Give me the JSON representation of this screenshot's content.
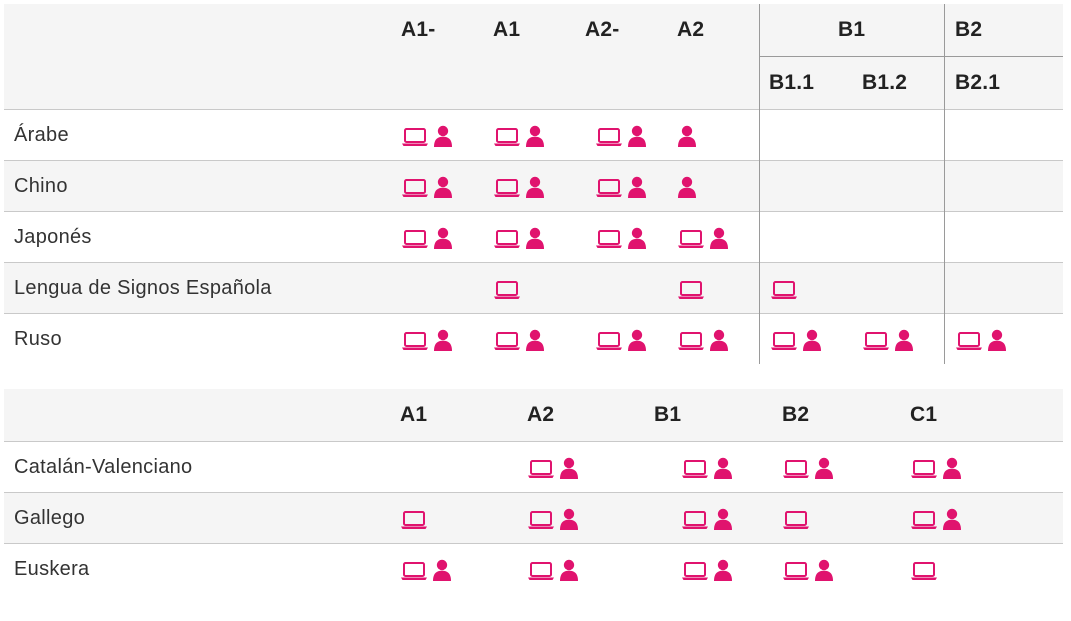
{
  "accent_color": "#e0136e",
  "table1": {
    "levels": [
      "A1-",
      "A1",
      "A2-",
      "A2"
    ],
    "group_b1": "B1",
    "group_b2": "B2",
    "sub_b1": [
      "B1.1",
      "B1.2"
    ],
    "sub_b2": [
      "B2.1"
    ],
    "rows": [
      {
        "language": "Árabe",
        "cells": [
          "laptop+person",
          "laptop+person",
          "laptop+person",
          "person",
          "",
          "",
          ""
        ]
      },
      {
        "language": "Chino",
        "cells": [
          "laptop+person",
          "laptop+person",
          "laptop+person",
          "person",
          "",
          "",
          ""
        ]
      },
      {
        "language": "Japonés",
        "cells": [
          "laptop+person",
          "laptop+person",
          "laptop+person",
          "laptop+person",
          "",
          "",
          ""
        ]
      },
      {
        "language": "Lengua de Signos Española",
        "cells": [
          "",
          "laptop",
          "",
          "laptop",
          "laptop",
          "",
          ""
        ]
      },
      {
        "language": "Ruso",
        "cells": [
          "laptop+person",
          "laptop+person",
          "laptop+person",
          "laptop+person",
          "laptop+person",
          "laptop+person",
          "laptop+person"
        ]
      }
    ]
  },
  "table2": {
    "levels": [
      "A1",
      "A2",
      "B1",
      "B2",
      "C1"
    ],
    "rows": [
      {
        "language": "Catalán-Valenciano",
        "cells": [
          "",
          "laptop+person",
          "laptop+person",
          "laptop+person",
          "laptop+person"
        ]
      },
      {
        "language": "Gallego",
        "cells": [
          "laptop",
          "laptop+person",
          "laptop+person",
          "laptop",
          "laptop+person"
        ]
      },
      {
        "language": "Euskera",
        "cells": [
          "laptop+person",
          "laptop+person",
          "laptop+person",
          "laptop+person",
          "laptop"
        ]
      }
    ]
  }
}
